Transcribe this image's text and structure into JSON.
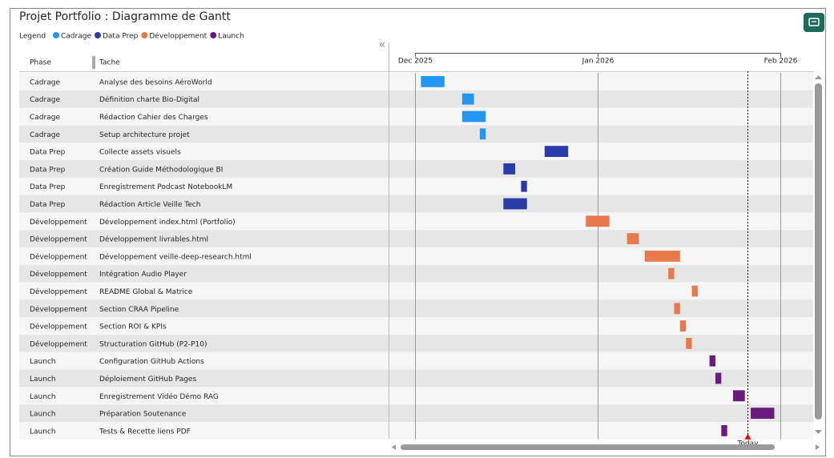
{
  "chart_data": {
    "type": "gantt",
    "title": "Projet Portfolio : Diagramme de Gantt",
    "legend_title": "Legend",
    "legend": [
      {
        "name": "Cadrage",
        "color": "#2196f3"
      },
      {
        "name": "Data Prep",
        "color": "#2a3aa6"
      },
      {
        "name": "Développement",
        "color": "#e8794a"
      },
      {
        "name": "Launch",
        "color": "#6a1b80"
      }
    ],
    "columns": [
      "Phase",
      "Tache"
    ],
    "phases": [
      "Cadrage",
      "Cadrage",
      "Cadrage",
      "Cadrage",
      "Data Prep",
      "Data Prep",
      "Data Prep",
      "Data Prep",
      "Développement",
      "Développement",
      "Développement",
      "Développement",
      "Développement",
      "Développement",
      "Développement",
      "Développement",
      "Launch",
      "Launch",
      "Launch",
      "Launch",
      "Launch"
    ],
    "categories": [
      "Analyse des besoins AéroWorld",
      "Définition charte Bio-Digital",
      "Rédaction Cahier des Charges",
      "Setup architecture projet",
      "Collecte assets visuels",
      "Création Guide Méthodologique BI",
      "Enregistrement Podcast NotebookLM",
      "Rédaction Article Veille Tech",
      "Développement index.html (Portfolio)",
      "Développement livrables.html",
      "Développement veille-deep-research.html",
      "Intégration Audio Player",
      "README Global & Matrice",
      "Section CRAA Pipeline",
      "Section ROI & KPIs",
      "Structuration GitHub (P2-P10)",
      "Configuration GitHub Actions",
      "Déploiement GitHub Pages",
      "Enregistrement Vidéo Démo RAG",
      "Préparation Soutenance",
      "Tests & Recette liens PDF"
    ],
    "start": [
      1,
      8,
      8,
      11,
      22,
      15,
      18,
      15,
      29,
      36,
      39,
      43,
      47,
      44,
      45,
      46,
      50,
      51,
      54,
      57,
      52
    ],
    "end": [
      5,
      10,
      12,
      12,
      26,
      17,
      19,
      19,
      33,
      38,
      45,
      44,
      48,
      45,
      46,
      47,
      51,
      52,
      56,
      61,
      53
    ],
    "xlim": [
      -4.5,
      67.6
    ],
    "xticks": [
      {
        "value": 0,
        "label": "Dec 2025"
      },
      {
        "value": 31,
        "label": "Jan 2026"
      },
      {
        "value": 62,
        "label": "Feb 2026"
      }
    ],
    "today": 56.4,
    "today_label": "Today"
  }
}
